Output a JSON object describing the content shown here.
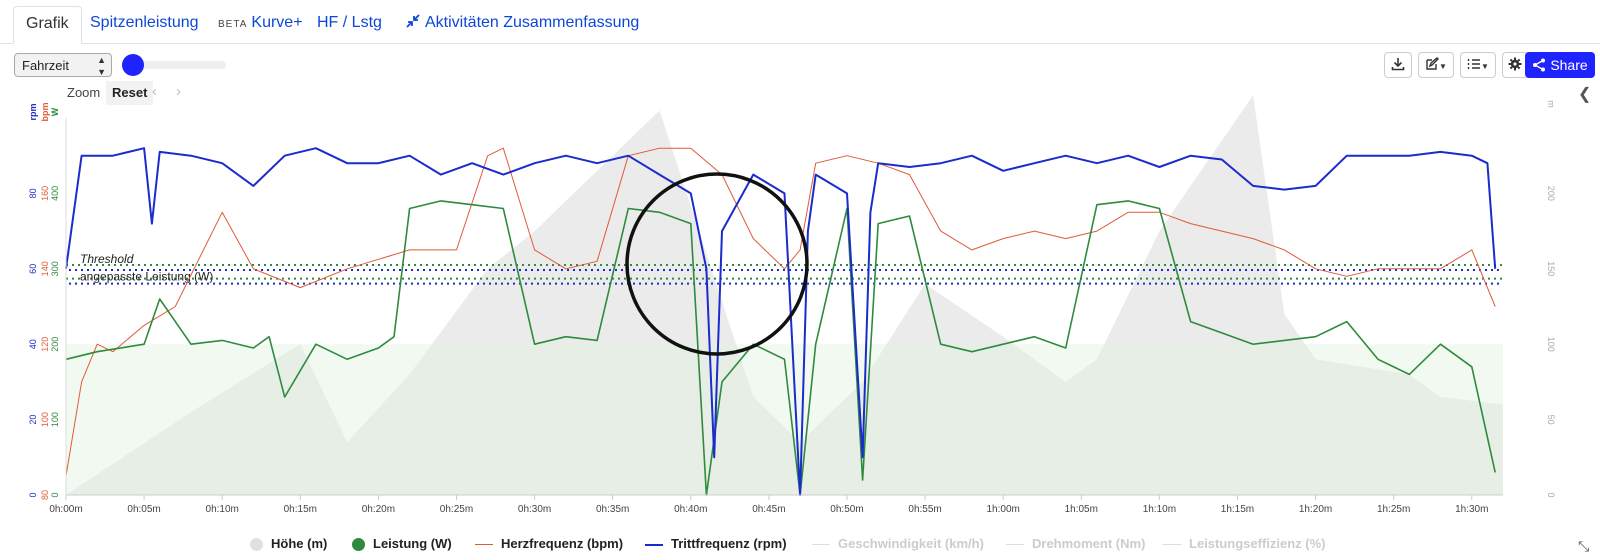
{
  "tabs": [
    {
      "label": "Grafik"
    },
    {
      "label": "Spitzenleistung"
    },
    {
      "badge": "BETA",
      "label": "Kurve+"
    },
    {
      "label": "HF / Lstg"
    },
    {
      "label": "Aktivitäten Zusammenfassung"
    }
  ],
  "toolbar": {
    "x_axis_select": "Fahrzeit",
    "share_label": "Share",
    "zoom_label": "Zoom",
    "reset_label": "Reset"
  },
  "icons": [
    "download-icon",
    "edit-icon",
    "list-icon",
    "gear-icon",
    "share-icon",
    "chevron-left-icon",
    "chevron-right-icon",
    "resize-icon"
  ],
  "colors": {
    "power": "#2e8b3e",
    "heartrate": "#e05a3a",
    "cadence": "#1a2ccc",
    "elevation": "#e0e0e0",
    "accent": "#1f24ff"
  },
  "chart_data": {
    "type": "line",
    "x_tick_labels": [
      "0h:00m",
      "0h:05m",
      "0h:10m",
      "0h:15m",
      "0h:20m",
      "0h:25m",
      "0h:30m",
      "0h:35m",
      "0h:40m",
      "0h:45m",
      "0h:50m",
      "0h:55m",
      "1h:00m",
      "1h:05m",
      "1h:10m",
      "1h:15m",
      "1h:20m",
      "1h:25m",
      "1h:30m"
    ],
    "x_range_minutes": [
      0,
      92
    ],
    "left_axes": {
      "rpm": {
        "label": "rpm",
        "ticks": [
          "0",
          "20",
          "40",
          "60",
          "80"
        ],
        "range": [
          0,
          100
        ],
        "color": "#1a2ccc"
      },
      "bpm": {
        "label": "bpm",
        "ticks": [
          "80",
          "100",
          "120",
          "140",
          "160"
        ],
        "range": [
          80,
          180
        ],
        "color": "#e05a3a"
      },
      "W": {
        "label": "W",
        "ticks": [
          "0",
          "100",
          "200",
          "300",
          "400"
        ],
        "range": [
          0,
          500
        ],
        "color": "#2e8b3e"
      }
    },
    "right_axis": {
      "label": "m",
      "ticks": [
        "0",
        "50",
        "100",
        "150",
        "200"
      ],
      "range": [
        0,
        250
      ]
    },
    "reference_lines": [
      {
        "label": "Threshold",
        "power_w": 305
      },
      {
        "label": "angepasste Leistung (W)",
        "power_w": 287
      }
    ],
    "annotation": "circle highlighting interval around 0h:40m",
    "series": [
      {
        "name": "Höhe (m)",
        "unit": "m",
        "x_min": [
          0,
          8,
          15,
          18,
          22,
          27,
          30,
          35,
          38,
          41,
          44,
          47,
          51,
          55,
          60,
          64,
          66,
          70,
          74,
          76,
          78,
          80,
          86,
          88,
          92
        ],
        "values": [
          0,
          55,
          100,
          35,
          80,
          150,
          175,
          225,
          255,
          160,
          65,
          35,
          75,
          140,
          105,
          75,
          90,
          175,
          235,
          265,
          120,
          90,
          80,
          65,
          60
        ]
      },
      {
        "name": "Leistung (W)",
        "unit": "W",
        "x_min": [
          0,
          2,
          5,
          6,
          8,
          10,
          12,
          13,
          14,
          16,
          18,
          20,
          21,
          22,
          24,
          26,
          28,
          30,
          32,
          34,
          36,
          38,
          40,
          41,
          42,
          44,
          46,
          47,
          48,
          50,
          51,
          52,
          54,
          56,
          58,
          60,
          62,
          64,
          66,
          68,
          70,
          72,
          74,
          76,
          78,
          80,
          82,
          84,
          86,
          88,
          90,
          91.5
        ],
        "values": [
          180,
          190,
          200,
          260,
          200,
          205,
          195,
          210,
          130,
          200,
          180,
          195,
          210,
          380,
          390,
          385,
          380,
          200,
          210,
          205,
          380,
          375,
          360,
          0,
          150,
          200,
          180,
          0,
          200,
          380,
          20,
          360,
          370,
          200,
          190,
          200,
          210,
          195,
          385,
          390,
          380,
          230,
          215,
          200,
          205,
          210,
          230,
          180,
          160,
          200,
          170,
          30
        ]
      },
      {
        "name": "Herzfrequenz (bpm)",
        "unit": "bpm",
        "x_min": [
          0,
          1,
          2,
          3,
          5,
          7,
          10,
          12,
          15,
          18,
          22,
          25,
          27,
          28,
          30,
          32,
          34,
          36,
          38,
          40,
          42,
          44,
          46,
          47,
          48,
          50,
          52,
          54,
          56,
          58,
          60,
          62,
          64,
          66,
          68,
          70,
          72,
          74,
          76,
          78,
          80,
          82,
          84,
          86,
          88,
          90,
          91.5
        ],
        "values": [
          85,
          110,
          120,
          118,
          125,
          130,
          155,
          140,
          135,
          140,
          145,
          145,
          170,
          172,
          145,
          140,
          142,
          170,
          172,
          172,
          165,
          148,
          140,
          145,
          168,
          170,
          168,
          165,
          150,
          145,
          148,
          150,
          148,
          150,
          155,
          155,
          152,
          150,
          148,
          145,
          140,
          138,
          140,
          140,
          140,
          145,
          130
        ]
      },
      {
        "name": "Trittfrequenz (rpm)",
        "unit": "rpm",
        "x_min": [
          0,
          1,
          3,
          5,
          5.5,
          6,
          8,
          10,
          12,
          14,
          16,
          18,
          20,
          22,
          24,
          26,
          28,
          30,
          32,
          34,
          36,
          38,
          40,
          41,
          41.5,
          42,
          44,
          46,
          47,
          47.5,
          48,
          50,
          51,
          51.5,
          52,
          54,
          56,
          58,
          60,
          62,
          64,
          66,
          68,
          70,
          72,
          74,
          76,
          78,
          80,
          82,
          84,
          86,
          88,
          90,
          91,
          91.5
        ],
        "values": [
          60,
          90,
          90,
          92,
          72,
          91,
          90,
          88,
          82,
          90,
          92,
          88,
          88,
          90,
          85,
          88,
          85,
          88,
          90,
          88,
          90,
          85,
          80,
          60,
          10,
          70,
          85,
          80,
          0,
          70,
          85,
          80,
          10,
          75,
          88,
          87,
          88,
          90,
          86,
          88,
          90,
          88,
          90,
          87,
          90,
          89,
          82,
          81,
          82,
          90,
          90,
          90,
          91,
          90,
          88,
          60
        ]
      },
      {
        "name": "Geschwindigkeit (km/h)",
        "hidden": true,
        "values": []
      },
      {
        "name": "Drehmoment (Nm)",
        "hidden": true,
        "values": []
      },
      {
        "name": "Leistungseffizienz (%)",
        "hidden": true,
        "values": []
      }
    ]
  }
}
